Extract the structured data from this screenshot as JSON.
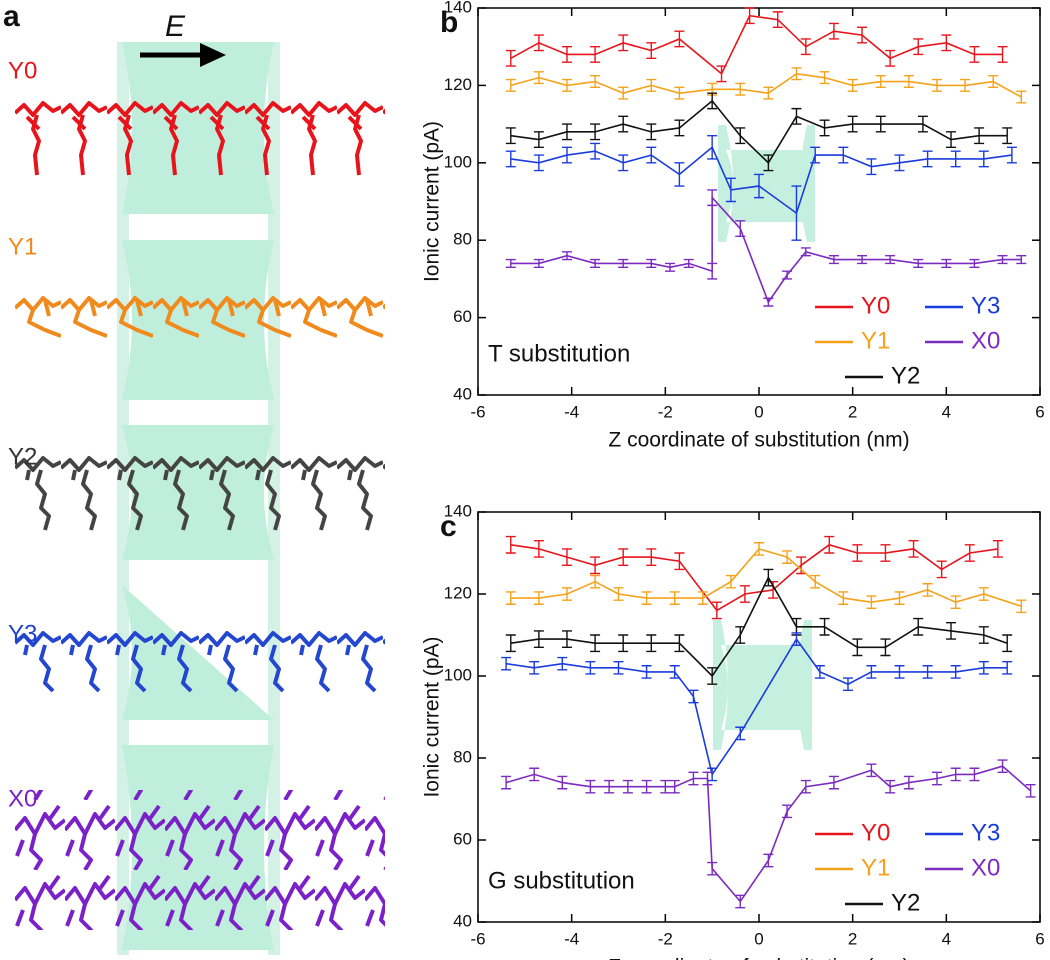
{
  "panel_a": {
    "label": "a",
    "field": "E",
    "molecules": [
      "Y0",
      "Y1",
      "Y2",
      "Y3",
      "X0"
    ],
    "colors": [
      "#e8141b",
      "#f08a1c",
      "#333333",
      "#1f3fd0",
      "#7a22c8"
    ]
  },
  "chart_data": [
    {
      "type": "line",
      "panel_label": "b",
      "annotation": "T substitution",
      "xlabel": "Z coordinate of substitution (nm)",
      "ylabel": "Ionic current (pA)",
      "xlim": [
        -6,
        6
      ],
      "xticks": [
        -6,
        -4,
        -2,
        0,
        2,
        4,
        6
      ],
      "ylim": [
        40,
        140
      ],
      "yticks": [
        40,
        60,
        80,
        100,
        120,
        140
      ],
      "grid": false,
      "series": [
        {
          "name": "Y0",
          "color": "#e8141b",
          "x": [
            -5.3,
            -4.7,
            -4.1,
            -3.5,
            -2.9,
            -2.3,
            -1.7,
            -0.8,
            -0.2,
            0.4,
            1.0,
            1.6,
            2.2,
            2.8,
            3.4,
            4.0,
            4.6,
            5.2
          ],
          "values": [
            127,
            131,
            128,
            128,
            131,
            129,
            132,
            123,
            138,
            137,
            130,
            134,
            133,
            127,
            130,
            131,
            128,
            128
          ],
          "errors": [
            2,
            2,
            2,
            2,
            2,
            2,
            2,
            2,
            2,
            2,
            2,
            2,
            2,
            2,
            2,
            2,
            2,
            2
          ]
        },
        {
          "name": "Y1",
          "color": "#f5a21a",
          "x": [
            -5.3,
            -4.7,
            -4.1,
            -3.5,
            -2.9,
            -2.3,
            -1.7,
            -1.0,
            -0.4,
            0.2,
            0.8,
            1.4,
            2.0,
            2.6,
            3.2,
            3.8,
            4.4,
            5.0,
            5.6
          ],
          "values": [
            120,
            122,
            120,
            121,
            118,
            120,
            118,
            119,
            119,
            118,
            123,
            122,
            120,
            121,
            121,
            120,
            120,
            121,
            117
          ],
          "errors": [
            1.5,
            1.5,
            1.5,
            1.5,
            1.5,
            1.5,
            1.5,
            1.5,
            1.5,
            1.5,
            1.5,
            1.5,
            1.5,
            1.5,
            1.5,
            1.5,
            1.5,
            1.5,
            1.5
          ]
        },
        {
          "name": "Y2",
          "color": "#111111",
          "x": [
            -5.3,
            -4.7,
            -4.1,
            -3.5,
            -2.9,
            -2.3,
            -1.7,
            -1.0,
            -0.4,
            0.2,
            0.8,
            1.4,
            2.0,
            2.6,
            3.5,
            4.1,
            4.7,
            5.3
          ],
          "values": [
            107,
            106,
            108,
            108,
            110,
            108,
            109,
            116,
            107,
            100,
            112,
            109,
            110,
            110,
            110,
            106,
            107,
            107
          ],
          "errors": [
            2,
            2,
            2,
            2,
            2,
            2,
            2,
            2,
            2,
            2,
            2,
            2,
            2,
            2,
            2,
            2,
            2,
            2
          ]
        },
        {
          "name": "Y3",
          "color": "#1a3cdc",
          "x": [
            -5.3,
            -4.7,
            -4.1,
            -3.5,
            -2.9,
            -2.3,
            -1.7,
            -1.0,
            -0.6,
            0.0,
            0.8,
            1.2,
            1.8,
            2.4,
            3.0,
            3.6,
            4.2,
            4.8,
            5.4
          ],
          "values": [
            101,
            100,
            102,
            103,
            100,
            102,
            97,
            104,
            93,
            94,
            87,
            102,
            102,
            99,
            100,
            101,
            101,
            101,
            102
          ],
          "errors": [
            2,
            2,
            2,
            2,
            2,
            2,
            3,
            3,
            3,
            3,
            7,
            2,
            2,
            2,
            2,
            2,
            2,
            2,
            2
          ]
        },
        {
          "name": "X0",
          "color": "#7b2bbf",
          "x": [
            -5.3,
            -4.7,
            -4.1,
            -3.5,
            -2.9,
            -2.3,
            -1.9,
            -1.5,
            -1.0,
            -1.0,
            -0.4,
            0.2,
            0.6,
            1.0,
            1.6,
            2.2,
            2.8,
            3.4,
            4.0,
            4.6,
            5.2,
            5.6
          ],
          "values": [
            74,
            74,
            76,
            74,
            74,
            74,
            73,
            74,
            72,
            91,
            83,
            64,
            71,
            77,
            75,
            75,
            75,
            74,
            74,
            74,
            75,
            75
          ],
          "errors": [
            1,
            1,
            1,
            1,
            1,
            1,
            1,
            1,
            2,
            2,
            2,
            1,
            1,
            1,
            1,
            1,
            1,
            1,
            1,
            1,
            1,
            1
          ]
        }
      ]
    },
    {
      "type": "line",
      "panel_label": "c",
      "annotation": "G substitution",
      "xlabel": "Z coordinate of substitution (nm)",
      "ylabel": "Ionic current (pA)",
      "xlim": [
        -6,
        6
      ],
      "xticks": [
        -6,
        -4,
        -2,
        0,
        2,
        4,
        6
      ],
      "ylim": [
        40,
        140
      ],
      "yticks": [
        40,
        60,
        80,
        100,
        120,
        140
      ],
      "grid": false,
      "series": [
        {
          "name": "Y0",
          "color": "#e8141b",
          "x": [
            -5.3,
            -4.7,
            -4.1,
            -3.5,
            -2.9,
            -2.3,
            -1.7,
            -0.9,
            -0.3,
            0.3,
            0.9,
            1.5,
            2.1,
            2.7,
            3.3,
            3.9,
            4.5,
            5.1
          ],
          "values": [
            132,
            131,
            129,
            127,
            129,
            129,
            128,
            116,
            120,
            121,
            127,
            132,
            130,
            130,
            131,
            126,
            130,
            131
          ],
          "errors": [
            2,
            2,
            2,
            2,
            2,
            2,
            2,
            2,
            2,
            2,
            2,
            2,
            2,
            2,
            2,
            2,
            2,
            2
          ]
        },
        {
          "name": "Y1",
          "color": "#f5a21a",
          "x": [
            -5.3,
            -4.7,
            -4.1,
            -3.5,
            -3.0,
            -2.4,
            -1.8,
            -1.2,
            -0.6,
            0.0,
            0.6,
            1.2,
            1.8,
            2.4,
            3.0,
            3.6,
            4.2,
            4.8,
            5.6
          ],
          "values": [
            119,
            119,
            120,
            123,
            120,
            119,
            119,
            119,
            123,
            131,
            129,
            123,
            119,
            118,
            119,
            121,
            118,
            120,
            117
          ],
          "errors": [
            1.5,
            1.5,
            1.5,
            1.5,
            1.5,
            1.5,
            1.5,
            1.5,
            1.5,
            1.5,
            1.5,
            1.5,
            1.5,
            1.5,
            1.5,
            1.5,
            1.5,
            1.5,
            1.5
          ]
        },
        {
          "name": "Y2",
          "color": "#111111",
          "x": [
            -5.3,
            -4.7,
            -4.1,
            -3.5,
            -2.9,
            -2.3,
            -1.7,
            -1.0,
            -0.4,
            0.2,
            0.8,
            1.4,
            2.1,
            2.7,
            3.4,
            4.1,
            4.8,
            5.3
          ],
          "values": [
            108,
            109,
            109,
            108,
            108,
            108,
            108,
            100,
            110,
            124,
            112,
            112,
            107,
            107,
            112,
            111,
            110,
            108
          ],
          "errors": [
            2,
            2,
            2,
            2,
            2,
            2,
            2,
            2,
            2,
            2,
            2,
            2,
            2,
            2,
            2,
            2,
            2,
            2
          ]
        },
        {
          "name": "Y3",
          "color": "#1a3cdc",
          "x": [
            -5.4,
            -4.8,
            -4.2,
            -3.6,
            -3.0,
            -2.4,
            -1.8,
            -1.4,
            -1.0,
            -0.4,
            0.8,
            1.3,
            1.9,
            2.4,
            3.0,
            3.6,
            4.2,
            4.8,
            5.3
          ],
          "values": [
            103,
            102,
            103,
            102,
            102,
            101,
            101,
            95,
            76,
            86,
            109,
            101,
            98,
            101,
            101,
            101,
            101,
            102,
            102
          ],
          "errors": [
            1.5,
            1.5,
            1.5,
            1.5,
            1.5,
            1.5,
            1.5,
            1.5,
            1.5,
            1.5,
            1.5,
            1.5,
            1.5,
            1.5,
            1.5,
            1.5,
            1.5,
            1.5,
            1.5
          ]
        },
        {
          "name": "X0",
          "color": "#7b2bbf",
          "x": [
            -5.4,
            -4.8,
            -4.2,
            -3.6,
            -3.2,
            -2.8,
            -2.4,
            -2.0,
            -1.8,
            -1.4,
            -1.1,
            -1.0,
            -0.4,
            0.2,
            0.6,
            1.0,
            1.6,
            2.4,
            2.8,
            3.2,
            3.8,
            4.2,
            4.6,
            5.2,
            5.8
          ],
          "values": [
            74,
            76,
            74,
            73,
            73,
            73,
            73,
            73,
            73,
            75,
            75,
            53,
            45,
            55,
            67,
            73,
            74,
            77,
            73,
            74,
            75,
            76,
            76,
            78,
            72
          ],
          "errors": [
            1.5,
            1.5,
            1.5,
            1.5,
            1.5,
            1.5,
            1.5,
            1.5,
            1.5,
            1.5,
            1.5,
            1.5,
            1.5,
            1.5,
            1.5,
            1.5,
            1.5,
            1.5,
            1.5,
            1.5,
            1.5,
            1.5,
            1.5,
            1.5,
            1.5
          ]
        }
      ]
    }
  ]
}
